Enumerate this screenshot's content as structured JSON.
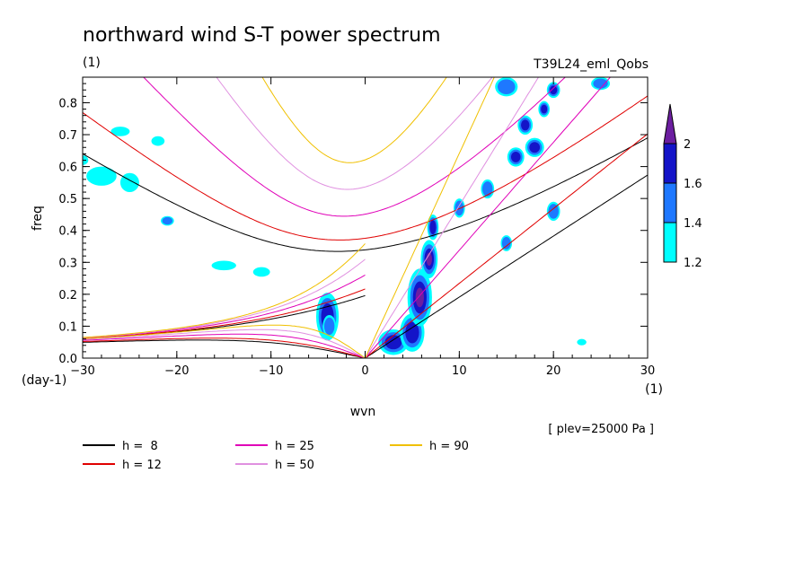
{
  "chart_data": {
    "type": "heatmap",
    "title": "northward wind S-T power spectrum",
    "subtitle_left": "(1)",
    "subtitle_right": "T39L24_eml_Qobs",
    "xlabel": "wvn",
    "xunit": "(1)",
    "ylabel": "freq",
    "yunit": "(day-1)",
    "xlim": [
      -30,
      30
    ],
    "ylim": [
      0,
      0.88
    ],
    "xticks": [
      -30,
      -20,
      -10,
      0,
      10,
      20,
      30
    ],
    "xtick_labels": [
      "-30",
      "-20",
      "-10",
      "0",
      "10",
      "20",
      "30"
    ],
    "yticks": [
      0.0,
      0.1,
      0.2,
      0.3,
      0.4,
      0.5,
      0.6,
      0.7,
      0.8
    ],
    "ytick_labels": [
      "0.0",
      "0.1",
      "0.2",
      "0.3",
      "0.4",
      "0.5",
      "0.6",
      "0.7",
      "0.8"
    ],
    "annotation": "[ plev=25000 Pa ]",
    "colorbar": {
      "levels": [
        1.2,
        1.4,
        1.6,
        2
      ],
      "level_labels": [
        "1.2",
        "1.4",
        "1.6",
        "2"
      ],
      "colors": [
        "#00ffff",
        "#1e78ff",
        "#1414c8",
        "#6c1ea0"
      ]
    },
    "dispersion_curves": [
      {
        "name": "h =  8",
        "h": 8,
        "color": "#000000"
      },
      {
        "name": "h = 12",
        "h": 12,
        "color": "#e00000"
      },
      {
        "name": "h = 25",
        "h": 25,
        "color": "#e000b8"
      },
      {
        "name": "h = 50",
        "h": 50,
        "color": "#e090e0"
      },
      {
        "name": "h = 90",
        "h": 90,
        "color": "#f0c000"
      }
    ],
    "contour_blobs": [
      {
        "x": -4,
        "y": 0.13,
        "rx": 1.2,
        "ry": 0.075,
        "level": 3
      },
      {
        "x": -3.8,
        "y": 0.1,
        "rx": 0.7,
        "ry": 0.035,
        "level": 2
      },
      {
        "x": 3,
        "y": 0.05,
        "rx": 1.6,
        "ry": 0.04,
        "level": 3
      },
      {
        "x": 5,
        "y": 0.08,
        "rx": 1.3,
        "ry": 0.06,
        "level": 3
      },
      {
        "x": 5.8,
        "y": 0.19,
        "rx": 1.3,
        "ry": 0.09,
        "level": 4
      },
      {
        "x": 6.8,
        "y": 0.31,
        "rx": 0.9,
        "ry": 0.06,
        "level": 4
      },
      {
        "x": 7.2,
        "y": 0.41,
        "rx": 0.6,
        "ry": 0.04,
        "level": 3
      },
      {
        "x": 10,
        "y": 0.47,
        "rx": 0.6,
        "ry": 0.03,
        "level": 2
      },
      {
        "x": 13,
        "y": 0.53,
        "rx": 0.7,
        "ry": 0.03,
        "level": 2
      },
      {
        "x": 16,
        "y": 0.63,
        "rx": 0.9,
        "ry": 0.03,
        "level": 3
      },
      {
        "x": 18,
        "y": 0.66,
        "rx": 1.0,
        "ry": 0.03,
        "level": 3
      },
      {
        "x": 17,
        "y": 0.73,
        "rx": 0.8,
        "ry": 0.03,
        "level": 3
      },
      {
        "x": 19,
        "y": 0.78,
        "rx": 0.6,
        "ry": 0.025,
        "level": 3
      },
      {
        "x": 15,
        "y": 0.85,
        "rx": 1.2,
        "ry": 0.03,
        "level": 2
      },
      {
        "x": 20,
        "y": 0.84,
        "rx": 0.7,
        "ry": 0.025,
        "level": 3
      },
      {
        "x": 25,
        "y": 0.86,
        "rx": 1.0,
        "ry": 0.02,
        "level": 2
      },
      {
        "x": 15,
        "y": 0.36,
        "rx": 0.6,
        "ry": 0.025,
        "level": 2
      },
      {
        "x": 20,
        "y": 0.46,
        "rx": 0.7,
        "ry": 0.03,
        "level": 2
      },
      {
        "x": 23,
        "y": 0.05,
        "rx": 0.5,
        "ry": 0.01,
        "level": 1
      },
      {
        "x": -28,
        "y": 0.57,
        "rx": 1.6,
        "ry": 0.03,
        "level": 1
      },
      {
        "x": -25,
        "y": 0.55,
        "rx": 1.0,
        "ry": 0.03,
        "level": 1
      },
      {
        "x": -21,
        "y": 0.43,
        "rx": 0.7,
        "ry": 0.015,
        "level": 2
      },
      {
        "x": -15,
        "y": 0.29,
        "rx": 1.3,
        "ry": 0.015,
        "level": 1
      },
      {
        "x": -11,
        "y": 0.27,
        "rx": 0.9,
        "ry": 0.015,
        "level": 1
      },
      {
        "x": -26,
        "y": 0.71,
        "rx": 1.0,
        "ry": 0.015,
        "level": 1
      },
      {
        "x": -22,
        "y": 0.68,
        "rx": 0.7,
        "ry": 0.015,
        "level": 1
      },
      {
        "x": -30,
        "y": 0.62,
        "rx": 0.6,
        "ry": 0.015,
        "level": 1
      }
    ]
  },
  "legend": [
    {
      "label": "h =  8",
      "color": "#000000"
    },
    {
      "label": "h = 12",
      "color": "#e00000"
    },
    {
      "label": "h = 25",
      "color": "#e000b8"
    },
    {
      "label": "h = 50",
      "color": "#e090e0"
    },
    {
      "label": "h = 90",
      "color": "#f0c000"
    }
  ]
}
